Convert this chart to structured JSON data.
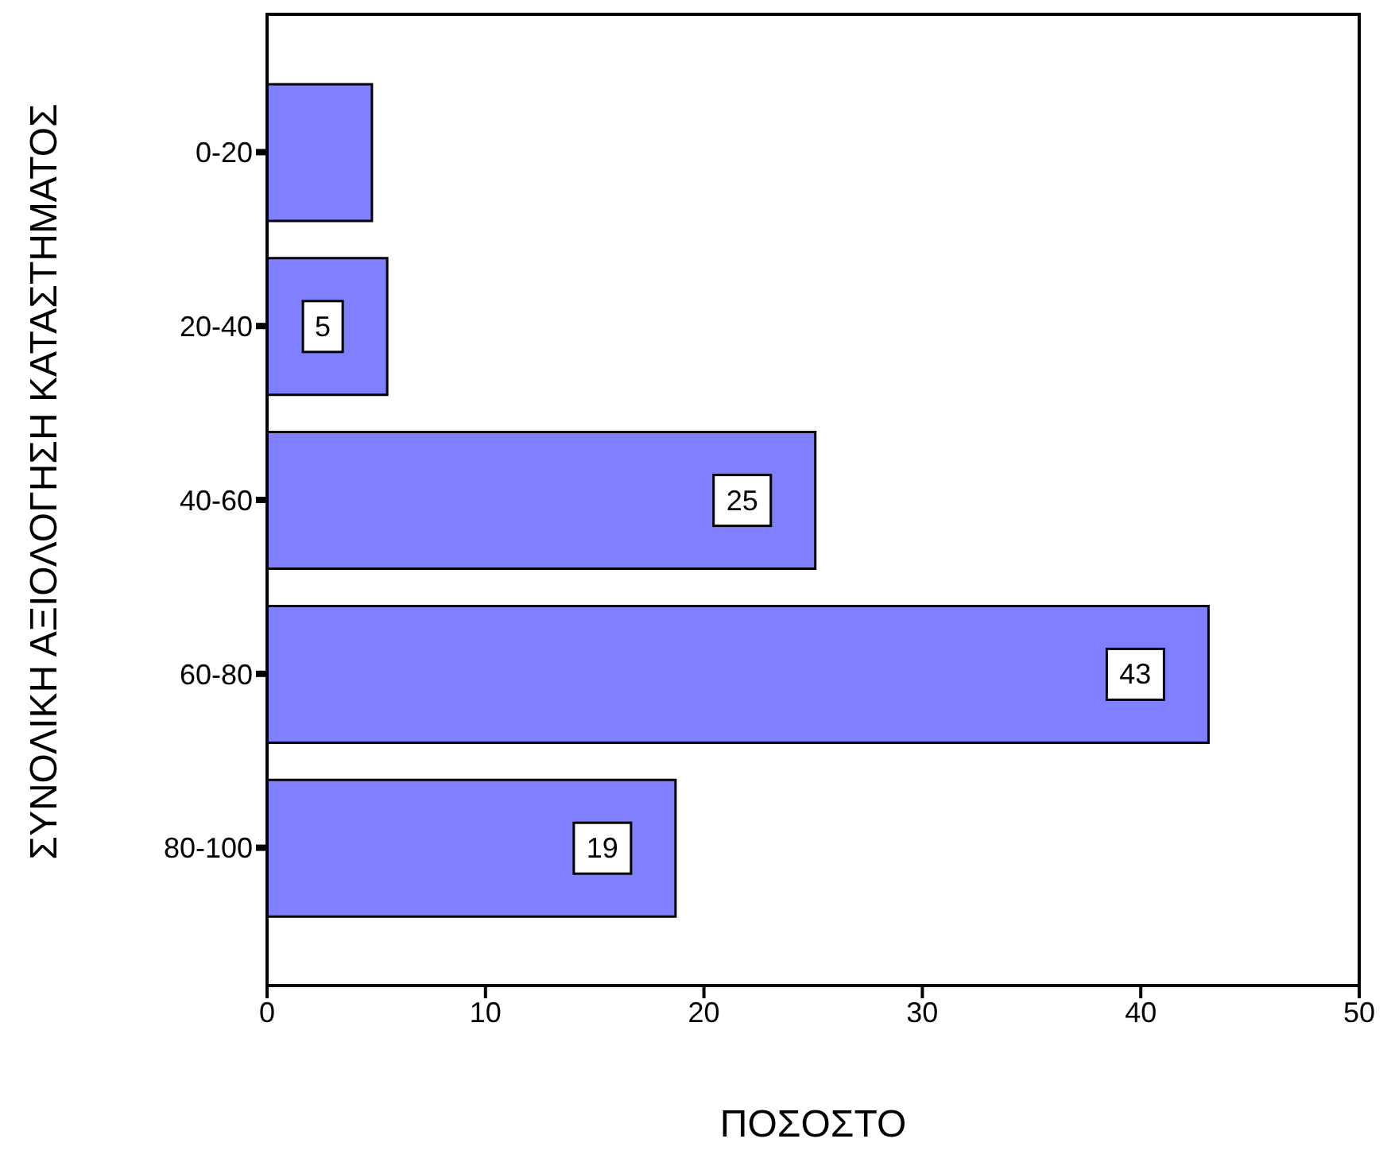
{
  "chart_data": {
    "type": "bar",
    "orientation": "horizontal",
    "xlabel": "ΠΟΣΟΣΤΟ",
    "ylabel": "ΣΥΝΟΛΙΚΗ ΑΞΙΟΛΟΓΗΣΗ ΚΑΤΑΣΤΗΜΑΤΟΣ",
    "categories": [
      "0-20",
      "20-40",
      "40-60",
      "60-80",
      "80-100"
    ],
    "values": [
      4.8,
      5.5,
      25.1,
      43.1,
      18.7
    ],
    "value_labels": [
      null,
      "5",
      "25",
      "43",
      "19"
    ],
    "color": "#8080ff",
    "xlim": [
      0,
      50
    ],
    "xticks": [
      0,
      10,
      20,
      30,
      40,
      50
    ]
  }
}
